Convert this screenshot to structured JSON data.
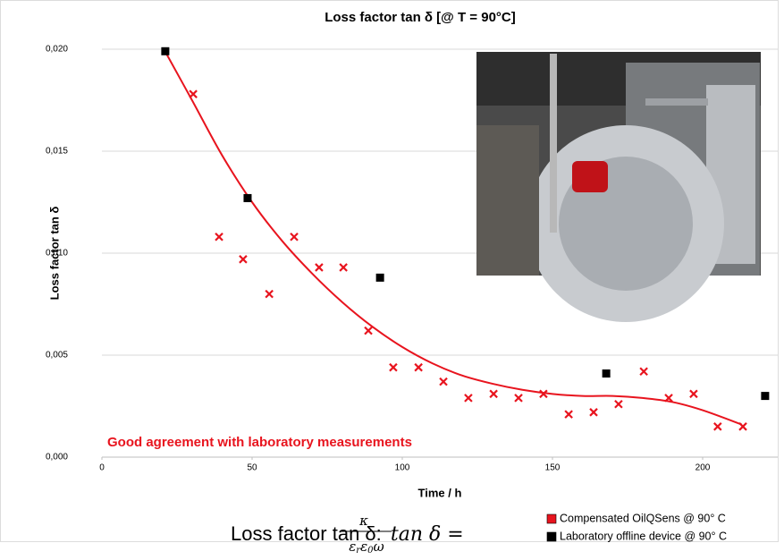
{
  "chart_data": {
    "type": "scatter",
    "title": "Loss factor tan δ [@ T = 90°C]",
    "x_label": "Time / h",
    "y_label": "Loss factor tan δ",
    "annotation": "Good agreement with laboratory measurements",
    "xlim": [
      0,
      225
    ],
    "ylim": [
      0,
      0.02
    ],
    "xticks": [
      0,
      50,
      100,
      150,
      200
    ],
    "yticks": [
      {
        "value": 0,
        "label": "0,000"
      },
      {
        "value": 0.005,
        "label": "0,005"
      },
      {
        "value": 0.01,
        "label": "0,010"
      },
      {
        "value": 0.015,
        "label": "0,015"
      },
      {
        "value": 0.02,
        "label": "0,020"
      }
    ],
    "grid": true,
    "legend": "bottom-right",
    "series": [
      {
        "name": "Compensated OilQSens @ 90° C",
        "color": "#e8141e",
        "marker": "x",
        "x": [
          30.4,
          39,
          47,
          55.7,
          64,
          72.3,
          80.4,
          88.7,
          97,
          105.4,
          113.7,
          122,
          130.4,
          138.7,
          147,
          155.4,
          163.7,
          172,
          180.4,
          188.7,
          197,
          205,
          213.4
        ],
        "values": [
          0.0178,
          0.0108,
          0.0097,
          0.008,
          0.0108,
          0.0093,
          0.0093,
          0.0062,
          0.0044,
          0.0044,
          0.0037,
          0.0029,
          0.0031,
          0.0029,
          0.0031,
          0.0021,
          0.0022,
          0.0026,
          0.0042,
          0.0029,
          0.0031,
          0.0015,
          0.0015
        ]
      },
      {
        "name": "Laboratory offline device @ 90° C",
        "color": "#000000",
        "marker": "square",
        "x": [
          21.1,
          48.5,
          92.6,
          167.9,
          220.8
        ],
        "values": [
          0.0199,
          0.0127,
          0.0088,
          0.0041,
          0.003
        ]
      }
    ],
    "trendline": {
      "color": "#e8141e",
      "x": [
        21,
        30,
        40,
        50,
        60,
        70,
        80,
        90,
        100,
        110,
        120,
        130,
        140,
        150,
        160,
        170,
        180,
        190,
        200,
        213
      ],
      "values": [
        0.0199,
        0.0175,
        0.0148,
        0.0125,
        0.0106,
        0.009,
        0.0076,
        0.0064,
        0.0054,
        0.0046,
        0.004,
        0.0036,
        0.0033,
        0.0031,
        0.003,
        0.003,
        0.0029,
        0.0027,
        0.0023,
        0.0016
      ]
    }
  },
  "formula": {
    "lead": "Loss factor tan δ:",
    "lhs": "tan δ =",
    "numerator": "κ",
    "denominator": [
      "ε",
      "r",
      "ε",
      "0",
      "ω"
    ]
  }
}
